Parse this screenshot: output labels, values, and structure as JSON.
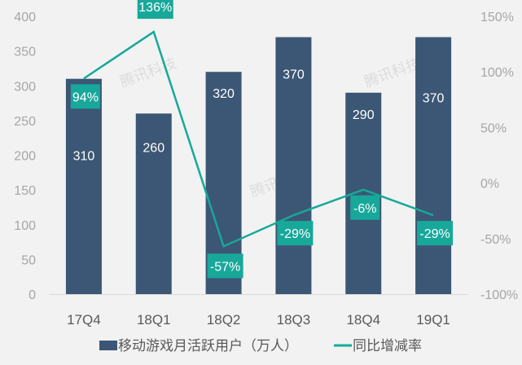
{
  "chart_data": {
    "type": "bar+line",
    "categories": [
      "17Q4",
      "18Q1",
      "18Q2",
      "18Q3",
      "18Q4",
      "19Q1"
    ],
    "series": [
      {
        "name": "移动游戏月活跃用户（万人）",
        "type": "bar",
        "axis": "left",
        "values": [
          310,
          260,
          320,
          370,
          290,
          370
        ],
        "labels": [
          "310",
          "260",
          "320",
          "370",
          "290",
          "370"
        ],
        "color": "#3b5775"
      },
      {
        "name": "同比增减率",
        "type": "line",
        "axis": "right",
        "values": [
          94,
          136,
          -57,
          -29,
          -6,
          -29
        ],
        "labels": [
          "94%",
          "136%",
          "-57%",
          "-29%",
          "-6%",
          "-29%"
        ],
        "color": "#17a89a"
      }
    ],
    "left_axis": {
      "ylim": [
        0,
        400
      ],
      "ticks": [
        "0",
        "50",
        "100",
        "150",
        "200",
        "250",
        "300",
        "350",
        "400"
      ]
    },
    "right_axis": {
      "ylim": [
        -100,
        150
      ],
      "ticks": [
        "-100%",
        "-50%",
        "0%",
        "50%",
        "100%",
        "150%"
      ]
    },
    "grid": false,
    "legend_position": "bottom",
    "watermark": "腾讯科技"
  }
}
